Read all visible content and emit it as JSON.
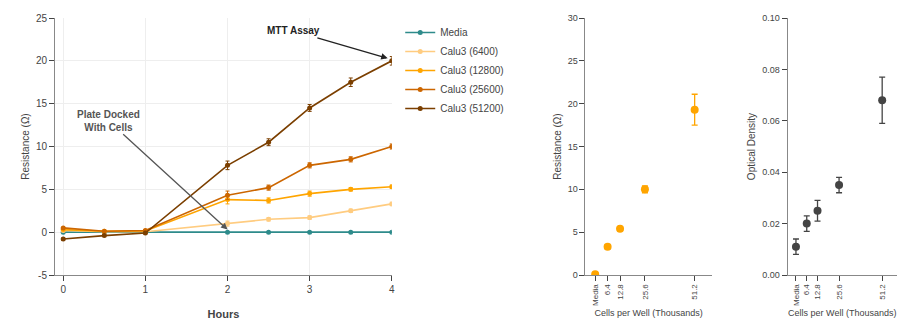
{
  "chart_data": [
    {
      "type": "line",
      "x": [
        0,
        0.5,
        1,
        2,
        2.5,
        3,
        3.5,
        4
      ],
      "series": [
        {
          "name": "Media",
          "color": "#2E8B8B",
          "values": [
            0.0,
            0.0,
            0.0,
            0.0,
            0.0,
            0.0,
            0.0,
            0.0
          ],
          "errors": [
            0.05,
            0.02,
            0.02,
            0.02,
            0.02,
            0.02,
            0.02,
            0.02
          ]
        },
        {
          "name": "Calu3 (6400)",
          "color": "#FFCC80",
          "values": [
            0.2,
            0.05,
            0.05,
            1.0,
            1.5,
            1.7,
            2.5,
            3.3
          ],
          "errors": [
            0.05,
            0.02,
            0.02,
            0.3,
            0.2,
            0.2,
            0.2,
            0.2
          ]
        },
        {
          "name": "Calu3 (12800)",
          "color": "#FFA500",
          "values": [
            0.3,
            0.1,
            0.15,
            3.8,
            3.7,
            4.5,
            5.0,
            5.3
          ],
          "errors": [
            0.05,
            0.02,
            0.05,
            0.5,
            0.3,
            0.3,
            0.2,
            0.2
          ]
        },
        {
          "name": "Calu3 (25600)",
          "color": "#CC6600",
          "values": [
            0.5,
            0.1,
            0.2,
            4.3,
            5.2,
            7.8,
            8.5,
            10.0
          ],
          "errors": [
            0.05,
            0.02,
            0.05,
            0.5,
            0.3,
            0.3,
            0.3,
            0.3
          ]
        },
        {
          "name": "Calu3 (51200)",
          "color": "#7B3F00",
          "values": [
            -0.8,
            -0.4,
            -0.1,
            7.8,
            10.5,
            14.5,
            17.5,
            20.0
          ],
          "errors": [
            0.1,
            0.05,
            0.05,
            0.5,
            0.4,
            0.4,
            0.5,
            0.5
          ]
        }
      ],
      "marker": "circle",
      "xlabel": "Hours",
      "ylabel": "Resistance (Ω)",
      "xlim": [
        -0.1,
        4
      ],
      "ylim": [
        -5,
        25
      ],
      "xticks": [
        0,
        1,
        2,
        3,
        4
      ],
      "yticks": [
        -5,
        0,
        5,
        10,
        15,
        20,
        25
      ],
      "grid": true,
      "legend": "right",
      "annotations": [
        {
          "text": "Plate Docked\nWith Cells",
          "x": 2.0,
          "y": 0.3,
          "text_x": 0.55,
          "text_y": 13.0,
          "color": "#555555"
        },
        {
          "text": "MTT Assay",
          "x": 3.95,
          "y": 20.3,
          "text_x": 2.8,
          "text_y": 23.5,
          "color": "#222222"
        }
      ]
    },
    {
      "type": "scatter",
      "x": [
        0,
        6.4,
        12.8,
        25.6,
        51.2
      ],
      "values": [
        0.1,
        3.3,
        5.4,
        10.0,
        19.3
      ],
      "errors": [
        0.15,
        0.25,
        0.25,
        0.4,
        1.8
      ],
      "color": "#FFA500",
      "marker": "circle",
      "xlabel": "Cells per Well (Thousands)",
      "ylabel": "Resistance (Ω)",
      "xlim": [
        -5,
        60
      ],
      "ylim": [
        0,
        30
      ],
      "xticks": [
        {
          "value": 0,
          "label": "Media"
        },
        6.4,
        12.8,
        25.6,
        51.2
      ],
      "yticks": [
        0,
        5,
        10,
        15,
        20,
        25,
        30
      ],
      "grid": false
    },
    {
      "type": "scatter",
      "x": [
        0,
        6.4,
        12.8,
        25.6,
        51.2
      ],
      "values": [
        0.011,
        0.02,
        0.025,
        0.035,
        0.068
      ],
      "errors": [
        0.003,
        0.003,
        0.004,
        0.003,
        0.009
      ],
      "color": "#444444",
      "marker": "circle",
      "xlabel": "Cells per Well (Thousands)",
      "ylabel": "Optical Density",
      "xlim": [
        -5,
        60
      ],
      "ylim": [
        0,
        0.1
      ],
      "xticks": [
        {
          "value": 0,
          "label": "Media"
        },
        6.4,
        12.8,
        25.6,
        51.2
      ],
      "yticks": [
        {
          "value": 0,
          "label": "0.00"
        },
        0.02,
        0.04,
        0.06,
        0.08,
        {
          "value": 0.1,
          "label": "0.10"
        }
      ],
      "grid": false
    }
  ]
}
